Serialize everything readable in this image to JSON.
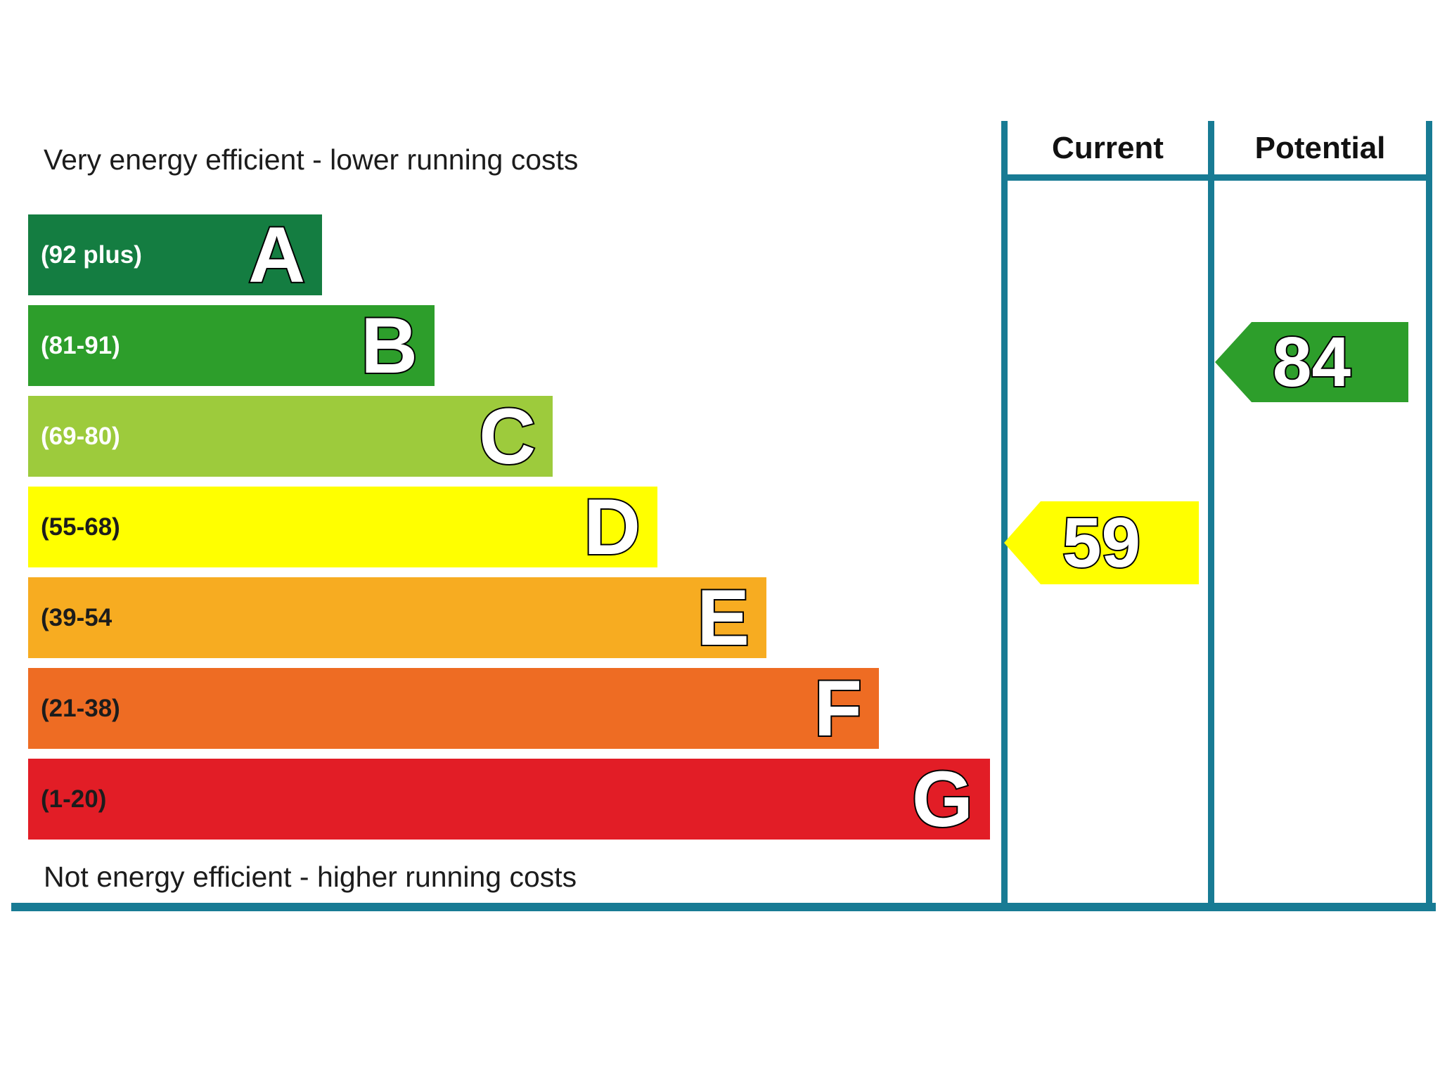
{
  "page": {
    "background": "#ffffff",
    "border_color": "#187b94",
    "text_color": "#1c1c1c"
  },
  "captions": {
    "top": "Very energy efficient - lower running costs",
    "bottom": "Not energy efficient - higher running costs"
  },
  "table": {
    "columns": [
      {
        "label": "Current"
      },
      {
        "label": "Potential"
      }
    ]
  },
  "bands": [
    {
      "letter": "A",
      "range": "(92 plus)",
      "color": "#147d41",
      "label_color": "#ffffff"
    },
    {
      "letter": "B",
      "range": "(81-91)",
      "color": "#2d9e2b",
      "label_color": "#ffffff"
    },
    {
      "letter": "C",
      "range": "(69-80)",
      "color": "#9dcb3c",
      "label_color": "#ffffff"
    },
    {
      "letter": "D",
      "range": "(55-68)",
      "color": "#ffff00",
      "label_color": "#1c1c1c"
    },
    {
      "letter": "E",
      "range": "(39-54",
      "color": "#f7ac21",
      "label_color": "#1c1c1c"
    },
    {
      "letter": "F",
      "range": "(21-38)",
      "color": "#ee6c23",
      "label_color": "#1c1c1c"
    },
    {
      "letter": "G",
      "range": "(1-20)",
      "color": "#e21d26",
      "label_color": "#1c1c1c"
    }
  ],
  "ratings": {
    "current": {
      "value": "59",
      "band": "D",
      "color": "#ffff00"
    },
    "potential": {
      "value": "84",
      "band": "B",
      "color": "#2d9e2b"
    }
  },
  "chart_data": {
    "type": "bar",
    "chart_kind": "energy-efficiency-rating",
    "top_caption": "Very energy efficient - lower running costs",
    "bottom_caption": "Not energy efficient - higher running costs",
    "categories": [
      "A",
      "B",
      "C",
      "D",
      "E",
      "F",
      "G"
    ],
    "band_ranges": [
      "92 plus",
      "81-91",
      "69-80",
      "55-68",
      "39-54",
      "21-38",
      "1-20"
    ],
    "band_colors": [
      "#147d41",
      "#2d9e2b",
      "#9dcb3c",
      "#ffff00",
      "#f7ac21",
      "#ee6c23",
      "#e21d26"
    ],
    "value_scale": [
      1,
      100
    ],
    "columns": [
      "Current",
      "Potential"
    ],
    "series": [
      {
        "name": "Current",
        "value": 59,
        "band": "D",
        "color": "#ffff00"
      },
      {
        "name": "Potential",
        "value": 84,
        "band": "B",
        "color": "#2d9e2b"
      }
    ],
    "legend_position": "top-right-columns",
    "grid": false
  }
}
